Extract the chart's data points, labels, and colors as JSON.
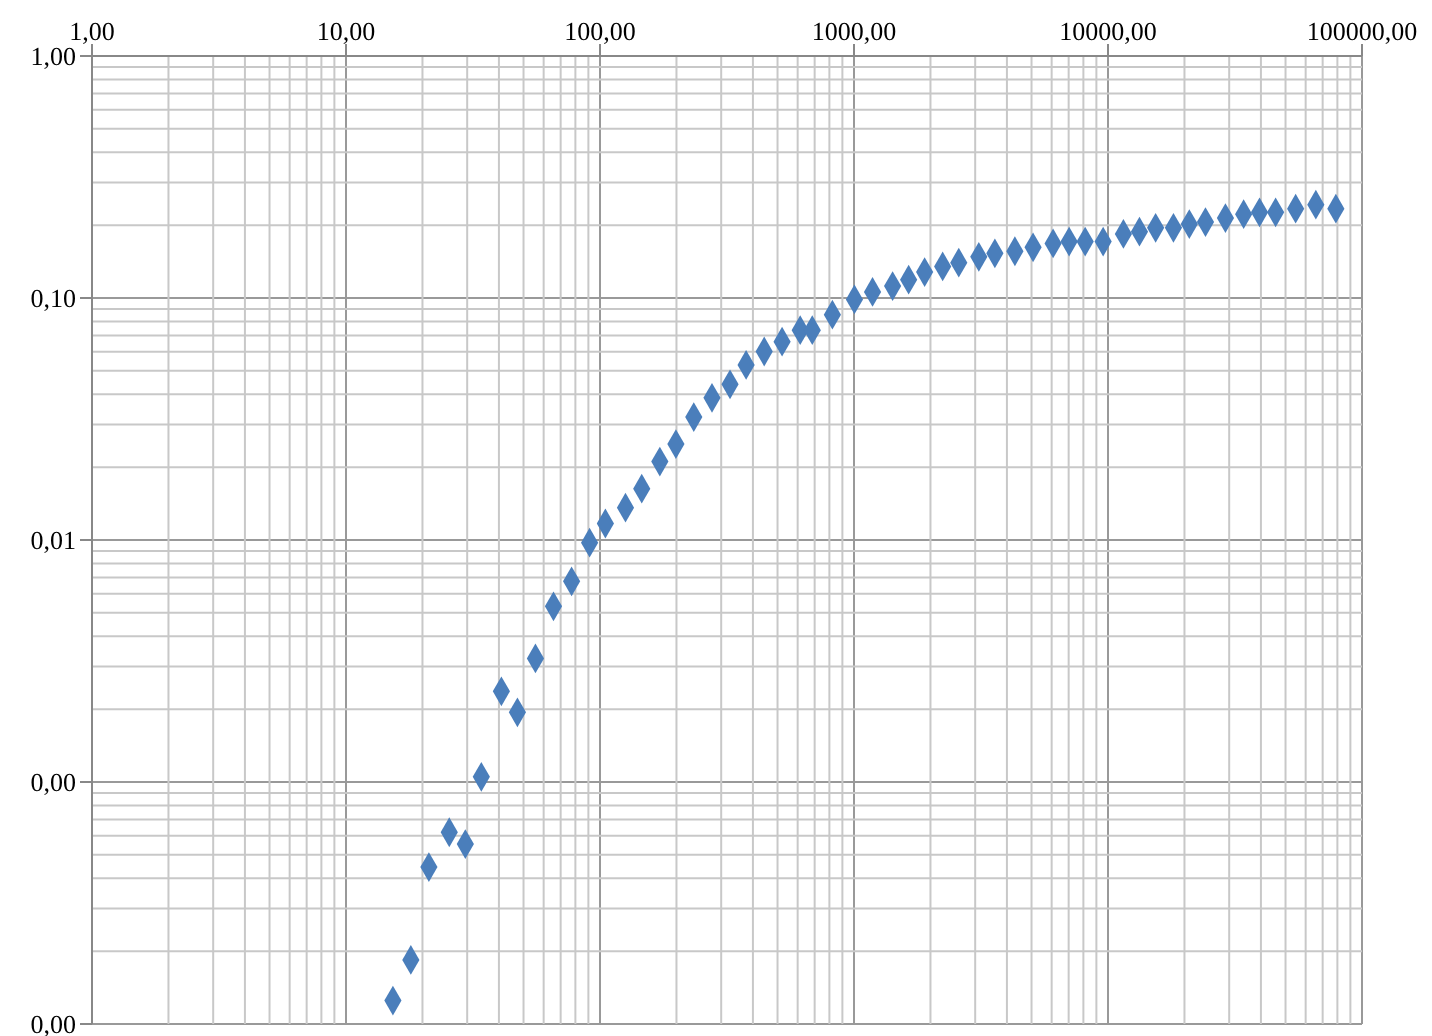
{
  "chart_data": {
    "type": "scatter",
    "x": [
      15.3,
      18.0,
      21.2,
      25.5,
      29.5,
      34.1,
      40.9,
      47.3,
      55.7,
      65.6,
      77.3,
      91,
      105,
      126,
      146,
      172,
      199,
      234,
      276,
      325,
      376,
      443,
      521,
      614,
      685,
      822,
      1004,
      1183,
      1419,
      1641,
      1897,
      2234,
      2585,
      3100,
      3586,
      4300,
      5070,
      6080,
      7030,
      8130,
      9570,
      11500,
      13300,
      15400,
      18100,
      20900,
      24200,
      29000,
      34200,
      39500,
      45700,
      54800,
      65800,
      78900
    ],
    "series": [
      {
        "color": "#4a7ebb",
        "values": [
          0.000125,
          0.000184,
          0.000445,
          0.00062,
          0.000554,
          0.00105,
          0.00237,
          0.00194,
          0.00324,
          0.00532,
          0.00675,
          0.00975,
          0.0117,
          0.0136,
          0.0163,
          0.0211,
          0.0249,
          0.0322,
          0.0387,
          0.044,
          0.0529,
          0.0601,
          0.066,
          0.0736,
          0.0736,
          0.0853,
          0.0987,
          0.106,
          0.112,
          0.119,
          0.128,
          0.135,
          0.14,
          0.148,
          0.153,
          0.156,
          0.162,
          0.168,
          0.171,
          0.171,
          0.171,
          0.184,
          0.188,
          0.195,
          0.195,
          0.202,
          0.206,
          0.214,
          0.222,
          0.226,
          0.226,
          0.234,
          0.243,
          0.234
        ]
      }
    ],
    "log": "xy",
    "grid": true,
    "marker": "diamond",
    "xlim": [
      1,
      100000
    ],
    "xticks": [
      {
        "value": 1,
        "label": "1,00"
      },
      {
        "value": 10,
        "label": "10,00"
      },
      {
        "value": 100,
        "label": "100,00"
      },
      {
        "value": 1000,
        "label": "1000,00"
      },
      {
        "value": 10000,
        "label": "10000,00"
      },
      {
        "value": 100000,
        "label": "100000,00"
      }
    ],
    "ylim": [
      0.0001,
      1
    ],
    "yticks": [
      {
        "value": 0.0001,
        "label": "0,00"
      },
      {
        "value": 0.001,
        "label": "0,00"
      },
      {
        "value": 0.01,
        "label": "0,01"
      },
      {
        "value": 0.1,
        "label": "0,10"
      },
      {
        "value": 1,
        "label": "1,00"
      }
    ]
  }
}
